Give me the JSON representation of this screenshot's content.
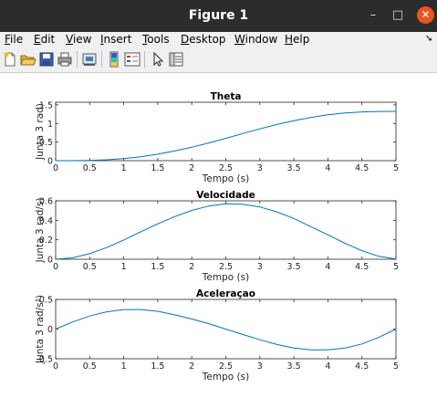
{
  "window": {
    "title": "Figure 1",
    "minimize": "–",
    "maximize": "□",
    "close": "✕"
  },
  "menubar": {
    "items": [
      {
        "label": "File",
        "u": "F",
        "rest": "ile"
      },
      {
        "label": "Edit",
        "u": "E",
        "rest": "dit"
      },
      {
        "label": "View",
        "u": "V",
        "rest": "iew"
      },
      {
        "label": "Insert",
        "u": "I",
        "rest": "nsert"
      },
      {
        "label": "Tools",
        "u": "T",
        "rest": "ools"
      },
      {
        "label": "Desktop",
        "u": "D",
        "rest": "esktop"
      },
      {
        "label": "Window",
        "u": "W",
        "rest": "indow"
      },
      {
        "label": "Help",
        "u": "H",
        "rest": "elp"
      }
    ]
  },
  "toolbar": {
    "icons": [
      "new-figure-icon",
      "open-file-icon",
      "save-icon",
      "print-icon",
      "link-icon",
      "insert-colorbar-icon",
      "insert-legend-icon",
      "pointer-icon",
      "property-editor-icon"
    ]
  },
  "colors": {
    "line": "#0072bd",
    "axis": "#262626",
    "titlebar": "#2c2c2c",
    "close": "#e95420"
  },
  "chart_data": [
    {
      "type": "line",
      "title": "Theta",
      "xlabel": "Tempo (s)",
      "ylabel": "Junta 3 rad)",
      "xlim": [
        0,
        5
      ],
      "ylim": [
        0,
        1.5708
      ],
      "xticks": [
        "0",
        "0.5",
        "1",
        "1.5",
        "2",
        "2.5",
        "3",
        "3.5",
        "4",
        "4.5",
        "5"
      ],
      "yticks": [
        {
          "v": 0,
          "label": "0"
        },
        {
          "v": 0.5,
          "label": "0.5"
        },
        {
          "v": 1,
          "label": "1"
        },
        {
          "v": 1.5,
          "label": "1.5"
        }
      ],
      "series": [
        {
          "x": [
            0,
            0.25,
            0.5,
            0.75,
            1,
            1.25,
            1.5,
            1.75,
            2,
            2.25,
            2.5,
            2.75,
            3,
            3.25,
            3.5,
            3.75,
            4,
            4.25,
            4.5,
            4.75,
            5
          ],
          "values": [
            0,
            0.0009,
            0.0075,
            0.024,
            0.056,
            0.106,
            0.174,
            0.259,
            0.361,
            0.476,
            0.601,
            0.729,
            0.854,
            0.972,
            1.076,
            1.163,
            1.233,
            1.281,
            1.31,
            1.324,
            1.325
          ]
        }
      ]
    },
    {
      "type": "line",
      "title": "Velocidade",
      "xlabel": "Tempo (s)",
      "ylabel": "Junta 3 rad/s)",
      "xlim": [
        0,
        5
      ],
      "ylim": [
        0,
        0.6
      ],
      "xticks": [
        "0",
        "0.5",
        "1",
        "1.5",
        "2",
        "2.5",
        "3",
        "3.5",
        "4",
        "4.5",
        "5"
      ],
      "yticks": [
        {
          "v": 0,
          "label": "0"
        },
        {
          "v": 0.2,
          "label": "0.2"
        },
        {
          "v": 0.4,
          "label": "0.4"
        },
        {
          "v": 0.6,
          "label": "0.6"
        }
      ],
      "series": [
        {
          "x": [
            0,
            0.25,
            0.5,
            0.75,
            1,
            1.25,
            1.5,
            1.75,
            2,
            2.25,
            2.5,
            2.75,
            3,
            3.25,
            3.5,
            3.75,
            4,
            4.25,
            4.5,
            4.75,
            5
          ],
          "values": [
            0,
            0.015,
            0.057,
            0.12,
            0.198,
            0.282,
            0.364,
            0.438,
            0.502,
            0.547,
            0.57,
            0.565,
            0.537,
            0.487,
            0.419,
            0.335,
            0.251,
            0.164,
            0.088,
            0.03,
            0.002
          ]
        }
      ]
    },
    {
      "type": "line",
      "title": "Aceleraçao",
      "xlabel": "Tempo (s)",
      "ylabel": "Junta 3 rad/s²)",
      "xlim": [
        0,
        5
      ],
      "ylim": [
        -0.5,
        0.5
      ],
      "xticks": [
        "0",
        "0.5",
        "1",
        "1.5",
        "2",
        "2.5",
        "3",
        "3.5",
        "4",
        "4.5",
        "5"
      ],
      "yticks": [
        {
          "v": -0.5,
          "label": "-0.5"
        },
        {
          "v": 0,
          "label": "0"
        },
        {
          "v": 0.5,
          "label": "0.5"
        }
      ],
      "series": [
        {
          "x": [
            0,
            0.25,
            0.5,
            0.75,
            1,
            1.25,
            1.5,
            1.75,
            2,
            2.25,
            2.5,
            2.75,
            3,
            3.25,
            3.5,
            3.75,
            4,
            4.25,
            4.5,
            4.75,
            5
          ],
          "values": [
            0,
            0.12,
            0.22,
            0.29,
            0.33,
            0.33,
            0.3,
            0.24,
            0.17,
            0.09,
            0.0,
            -0.09,
            -0.18,
            -0.26,
            -0.32,
            -0.35,
            -0.35,
            -0.32,
            -0.25,
            -0.14,
            0.0
          ]
        }
      ]
    }
  ]
}
